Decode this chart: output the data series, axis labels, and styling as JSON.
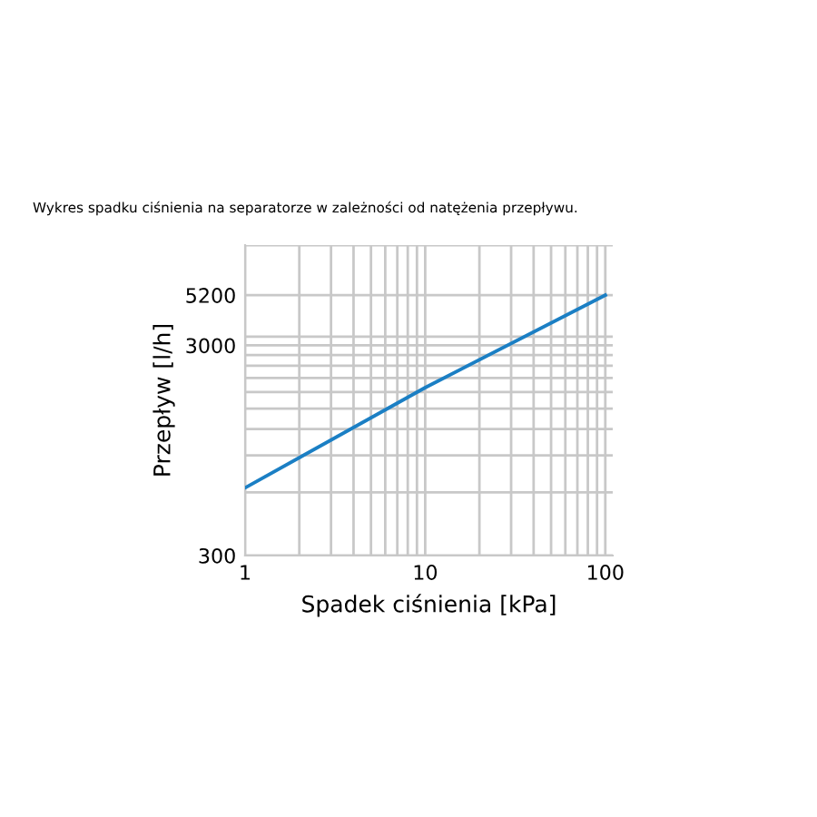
{
  "chart_data": {
    "type": "line",
    "title": "Wykres spadku ciśnienia na separatorze w zależności od natężenia przepływu.",
    "xlabel": "Spadek ciśnienia [kPa]",
    "ylabel": "Przepływ [l/h]",
    "log": "xy",
    "grid": true,
    "marker": "none",
    "line_style": "solid",
    "x": [
      1,
      10,
      100
    ],
    "series": [
      {
        "color": "#1b7fc4",
        "values": [
          630,
          1890,
          5200
        ]
      }
    ],
    "xlim": [
      1,
      110
    ],
    "xticks": [
      1,
      {
        "value": 2,
        "label": null
      },
      {
        "value": 3,
        "label": null
      },
      {
        "value": 4,
        "label": null
      },
      {
        "value": 5,
        "label": null
      },
      {
        "value": 6,
        "label": null
      },
      {
        "value": 7,
        "label": null
      },
      {
        "value": 8,
        "label": null
      },
      {
        "value": 9,
        "label": null
      },
      10,
      {
        "value": 20,
        "label": null
      },
      {
        "value": 30,
        "label": null
      },
      {
        "value": 40,
        "label": null
      },
      {
        "value": 50,
        "label": null
      },
      {
        "value": 60,
        "label": null
      },
      {
        "value": 70,
        "label": null
      },
      {
        "value": 80,
        "label": null
      },
      {
        "value": 90,
        "label": null
      },
      100
    ],
    "ylim": [
      300,
      9000
    ],
    "yticks": [
      300,
      {
        "value": 600,
        "label": null
      },
      {
        "value": 900,
        "label": null
      },
      {
        "value": 1200,
        "label": null
      },
      {
        "value": 1500,
        "label": null
      },
      {
        "value": 1800,
        "label": null
      },
      {
        "value": 2100,
        "label": null
      },
      {
        "value": 2400,
        "label": null
      },
      {
        "value": 2700,
        "label": null
      },
      3000,
      {
        "value": 3300,
        "label": null
      },
      5200,
      {
        "value": 9000,
        "label": null
      }
    ]
  }
}
